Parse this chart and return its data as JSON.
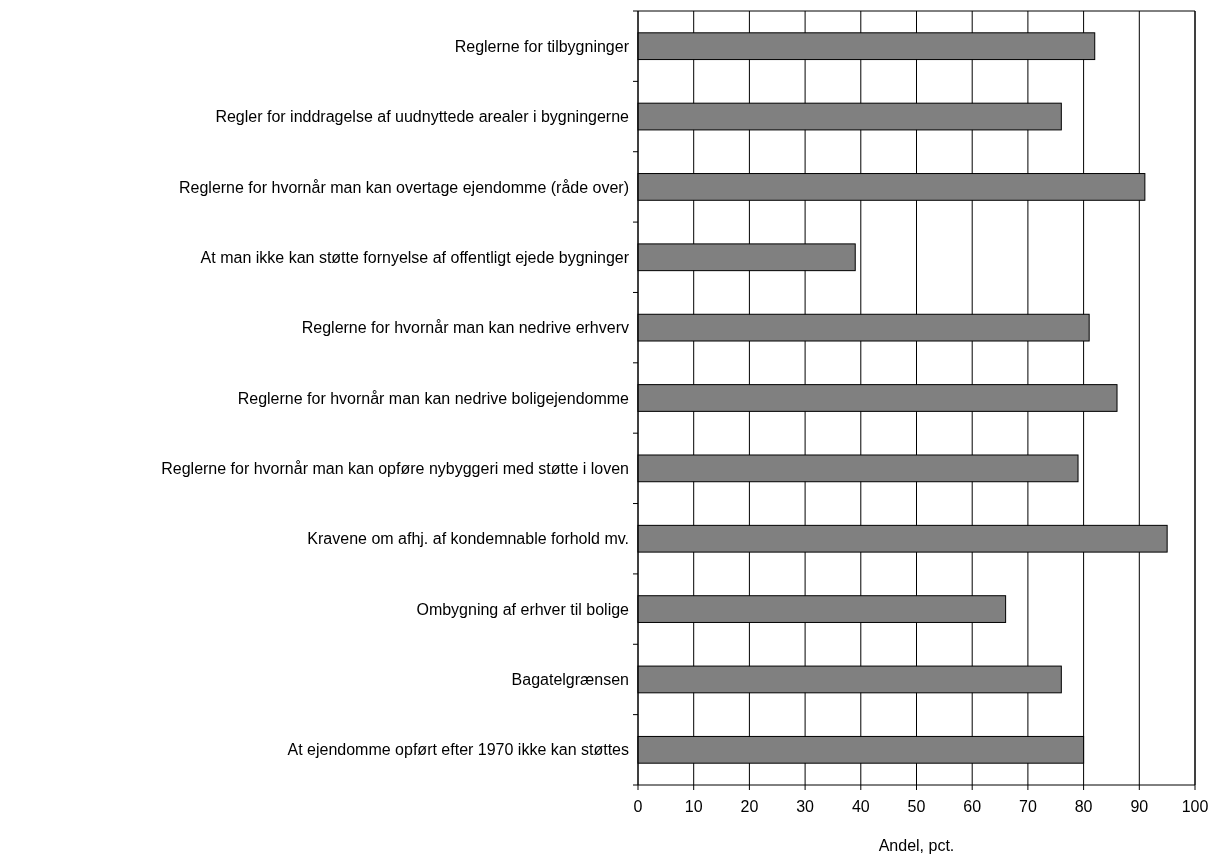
{
  "chart_data": {
    "type": "bar",
    "orientation": "horizontal",
    "xlabel": "Andel, pct.",
    "categories": [
      "Reglerne for tilbygninger",
      "Regler for inddragelse af uudnyttede arealer i bygningerne",
      "Reglerne for hvornår man kan overtage ejendomme (råde over)",
      "At man ikke kan støtte fornyelse af offentligt ejede bygninger",
      "Reglerne for hvornår man kan nedrive erhverv",
      "Reglerne for hvornår man kan nedrive boligejendomme",
      "Reglerne for hvornår man kan opføre nybyggeri med støtte i loven",
      "Kravene om afhj. af kondemnable forhold mv.",
      "Ombygning af erhver til bolige",
      "Bagatelgrænsen",
      "At ejendomme opført efter 1970 ikke kan støttes"
    ],
    "values": [
      82,
      76,
      91,
      39,
      81,
      86,
      79,
      95,
      66,
      76,
      80
    ],
    "color": "#808080",
    "xlim": [
      0,
      100
    ],
    "xticks": [
      0,
      10,
      20,
      30,
      40,
      50,
      60,
      70,
      80,
      90,
      100
    ],
    "grid": "x"
  }
}
